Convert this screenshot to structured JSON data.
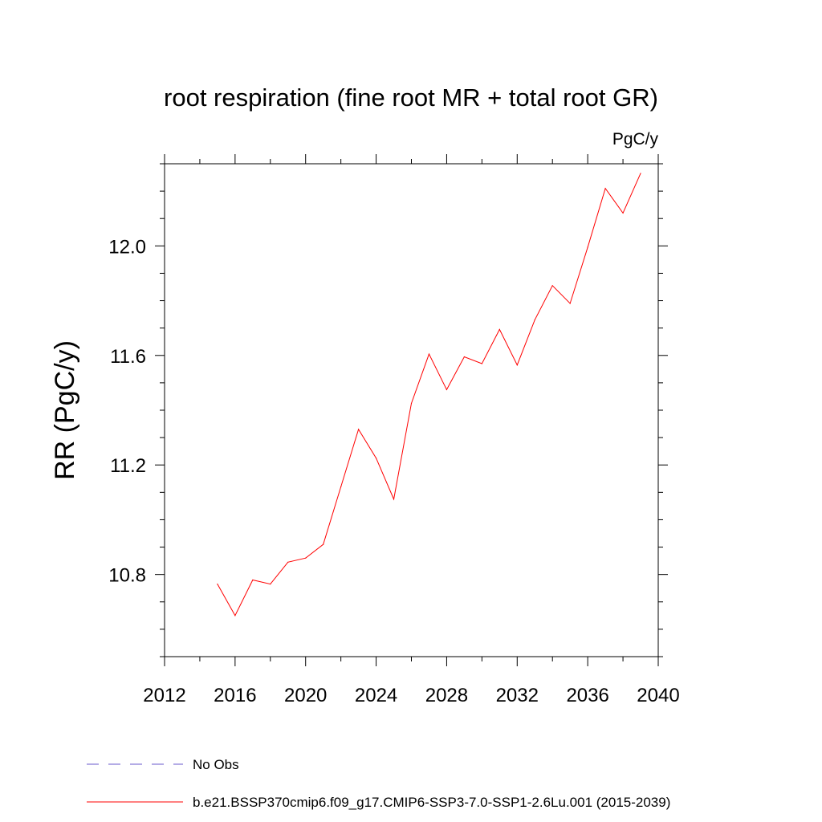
{
  "chart_data": {
    "type": "line",
    "title": "root respiration (fine root MR + total root GR)",
    "units": "PgC/y",
    "ylabel": "RR  (PgC/y)",
    "xlabel": "",
    "xlim": [
      2012,
      2040
    ],
    "ylim": [
      10.5,
      12.3
    ],
    "x_major_ticks": [
      2012,
      2016,
      2020,
      2024,
      2028,
      2032,
      2036,
      2040
    ],
    "x_tick_labels": [
      "2012",
      "2016",
      "2020",
      "2024",
      "2028",
      "2032",
      "2036",
      "2040"
    ],
    "x_minor_step": 2,
    "y_major_ticks": [
      10.8,
      11.2,
      11.6,
      12.0
    ],
    "y_tick_labels": [
      "10.8",
      "11.2",
      "11.6",
      "12.0"
    ],
    "y_minor_step": 0.1,
    "grid": false,
    "legend_position": "bottom-left",
    "series": [
      {
        "name": "b.e21.BSSP370cmip6.f09_g17.CMIP6-SSP3-7.0-SSP1-2.6Lu.001 (2015-2039)",
        "color": "#ff0000",
        "line_style": "solid",
        "x": [
          2015,
          2016,
          2017,
          2018,
          2019,
          2020,
          2021,
          2022,
          2023,
          2024,
          2025,
          2026,
          2027,
          2028,
          2029,
          2030,
          2031,
          2032,
          2033,
          2034,
          2035,
          2036,
          2037,
          2038,
          2039
        ],
        "values": [
          10.765,
          10.65,
          10.78,
          10.765,
          10.845,
          10.86,
          10.91,
          11.12,
          11.33,
          11.225,
          11.075,
          11.425,
          11.605,
          11.475,
          11.595,
          11.57,
          11.695,
          11.565,
          11.73,
          11.855,
          11.79,
          11.995,
          12.21,
          12.12,
          12.265
        ]
      }
    ],
    "legend": [
      {
        "label": "No Obs",
        "color": "#6a5acd",
        "line_style": "dashed"
      },
      {
        "label": "b.e21.BSSP370cmip6.f09_g17.CMIP6-SSP3-7.0-SSP1-2.6Lu.001 (2015-2039)",
        "color": "#ff0000",
        "line_style": "solid"
      }
    ]
  }
}
